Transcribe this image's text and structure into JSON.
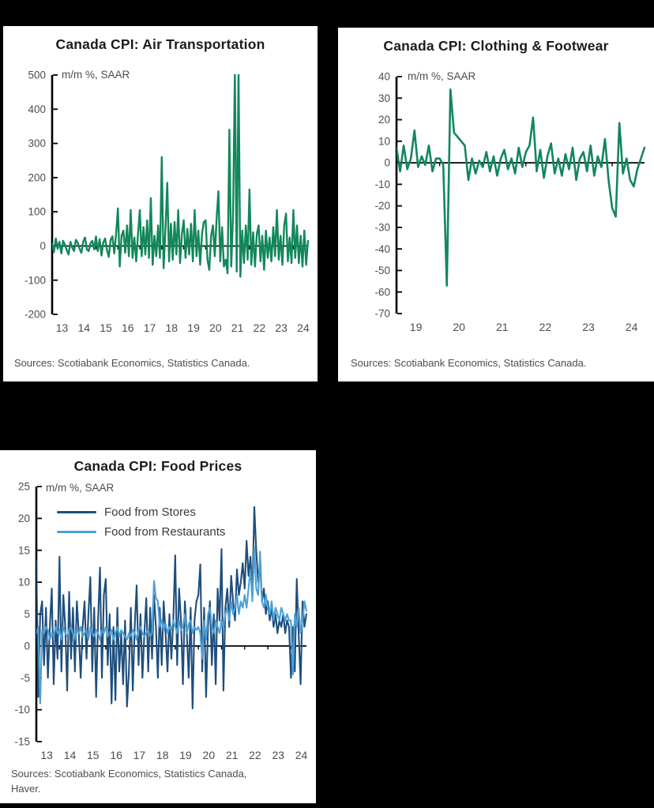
{
  "colors": {
    "background": "#000000",
    "panel": "#ffffff",
    "green": "#12875c",
    "dark_blue": "#1e4e7c",
    "light_blue": "#4da0d6",
    "axis": "#000000",
    "tick_text": "#4d4d4d"
  },
  "chart_data": [
    {
      "type": "line",
      "title": "Canada CPI: Air Transportation",
      "unit_label": "m/m %, SAAR",
      "source": "Sources: Scotiabank Economics, Statistics Canada.",
      "xlim": [
        2013,
        2024.67
      ],
      "ylim": [
        -200,
        500
      ],
      "ytick_step": 100,
      "yticks": [
        500,
        400,
        300,
        200,
        100,
        0,
        -100,
        -200
      ],
      "year_labels": [
        "13",
        "14",
        "15",
        "16",
        "17",
        "18",
        "19",
        "20",
        "21",
        "22",
        "23",
        "24"
      ],
      "points_per_year": 12,
      "grid": false,
      "legend_position": "none",
      "series": [
        {
          "name": "Air Transportation",
          "color": "#12875c",
          "width": 2.4,
          "values": [
            8,
            -18,
            22,
            -8,
            12,
            -22,
            15,
            4,
            -12,
            -25,
            12,
            -5,
            -15,
            18,
            10,
            -8,
            -20,
            12,
            25,
            -10,
            -15,
            8,
            15,
            -10,
            28,
            -15,
            20,
            -28,
            10,
            22,
            -12,
            -32,
            18,
            28,
            -22,
            35,
            110,
            -60,
            30,
            45,
            -20,
            60,
            -30,
            105,
            -35,
            25,
            -45,
            35,
            105,
            -30,
            55,
            -25,
            75,
            -35,
            140,
            -55,
            30,
            -30,
            60,
            -35,
            260,
            -65,
            45,
            185,
            -45,
            65,
            -40,
            70,
            -25,
            105,
            -50,
            35,
            75,
            -35,
            50,
            -25,
            65,
            -45,
            105,
            -30,
            45,
            -55,
            35,
            70,
            75,
            -40,
            -70,
            30,
            60,
            -30,
            80,
            160,
            -45,
            55,
            -60,
            -40,
            -80,
            340,
            -60,
            90,
            505,
            -75,
            510,
            -90,
            45,
            -50,
            60,
            -40,
            165,
            -55,
            40,
            -60,
            35,
            60,
            -45,
            30,
            -70,
            45,
            -35,
            25,
            -45,
            55,
            -30,
            105,
            -40,
            30,
            -55,
            60,
            95,
            -45,
            25,
            -50,
            105,
            -35,
            60,
            -50,
            30,
            -60,
            45,
            -55,
            15
          ]
        }
      ]
    },
    {
      "type": "line",
      "title": "Canada CPI: Clothing & Footwear",
      "unit_label": "m/m %, SAAR",
      "source": "Sources: Scotiabank Economics, Statistics Canada.",
      "xlim": [
        2019,
        2024.75
      ],
      "ylim": [
        -70,
        40
      ],
      "ytick_step": 10,
      "yticks": [
        40,
        30,
        20,
        10,
        0,
        -10,
        -20,
        -30,
        -40,
        -50,
        -60,
        -70
      ],
      "year_labels": [
        "19",
        "20",
        "21",
        "22",
        "23",
        "24"
      ],
      "points_per_year": 12,
      "grid": false,
      "legend_position": "none",
      "series": [
        {
          "name": "Clothing & Footwear",
          "color": "#12875c",
          "width": 2.6,
          "values": [
            7,
            -4,
            8,
            -3,
            2,
            15,
            -2,
            3,
            -1,
            8,
            -4,
            2,
            2,
            -1,
            -57,
            34,
            14,
            12,
            10,
            8,
            -8,
            2,
            -5,
            1,
            -2,
            5,
            -4,
            3,
            -6,
            2,
            6,
            -3,
            2,
            -5,
            7,
            -2,
            5,
            8,
            21,
            -4,
            6,
            -7,
            3,
            9,
            -5,
            2,
            -6,
            4,
            -3,
            7,
            -8,
            2,
            5,
            -4,
            8,
            -6,
            3,
            -2,
            11,
            -8,
            -21,
            -25,
            18.5,
            -5,
            2,
            -8,
            -11,
            -3,
            2,
            7
          ]
        }
      ]
    },
    {
      "type": "line",
      "title": "Canada CPI: Food Prices",
      "unit_label": "m/m %, SAAR",
      "source": "Sources: Scotiabank Economics, Statistics Canada, Haver.",
      "xlim": [
        2013,
        2024.67
      ],
      "ylim": [
        -15,
        25
      ],
      "ytick_step": 5,
      "yticks": [
        25,
        20,
        15,
        10,
        5,
        0,
        -5,
        -10,
        -15
      ],
      "year_labels": [
        "13",
        "14",
        "15",
        "16",
        "17",
        "18",
        "19",
        "20",
        "21",
        "22",
        "23",
        "24"
      ],
      "points_per_year": 12,
      "grid": false,
      "legend_position": "top-left",
      "series": [
        {
          "name": "Food from Stores",
          "color": "#1e4e7c",
          "width": 2.1,
          "values": [
            13.5,
            -8,
            5,
            7,
            -3,
            6,
            -5,
            3,
            9,
            -6,
            4,
            -2,
            14,
            -4,
            8,
            3,
            -7,
            8.5,
            -2,
            6,
            -4,
            7,
            2,
            -5,
            3,
            7,
            -2,
            5,
            10.8,
            -4,
            6,
            -8,
            4,
            12.3,
            -5,
            8,
            10.5,
            -3,
            5,
            -9,
            3,
            -8.5,
            6,
            -4,
            2,
            -6,
            4,
            -9.5,
            -4,
            6,
            -7,
            3,
            9.5,
            -3,
            5,
            -5,
            2,
            7.5,
            -4,
            6,
            -2,
            8,
            3,
            -5,
            6,
            -3,
            7,
            2,
            -4,
            5,
            -2,
            4,
            14.2,
            -3,
            9,
            4,
            -6,
            7,
            2,
            -5,
            6,
            -9.8,
            4,
            7,
            8,
            12.8,
            -4,
            6,
            -8,
            3,
            7,
            -3,
            5,
            -6,
            9,
            4,
            15.2,
            -7,
            6,
            9,
            3,
            11,
            7,
            4,
            12,
            8,
            10,
            13,
            9,
            16.5,
            11,
            14,
            8,
            21.8,
            15,
            10,
            13,
            7,
            9,
            5,
            7,
            4,
            6,
            3,
            5,
            2,
            4,
            3,
            5,
            2,
            4,
            3,
            -5,
            3,
            -4,
            10.5,
            2,
            -6,
            7,
            3,
            5
          ]
        },
        {
          "name": "Food from Restaurants",
          "color": "#4da0d6",
          "width": 2.1,
          "values": [
            2,
            3,
            -9,
            2.5,
            2,
            3,
            2.5,
            1,
            2,
            1.5,
            3,
            2,
            2.5,
            1,
            3,
            2,
            1.5,
            2.5,
            3,
            2,
            1,
            2.5,
            2,
            3,
            1.5,
            2,
            2.5,
            1,
            3,
            2,
            1.5,
            2.5,
            2,
            1,
            2.5,
            2,
            3,
            1.5,
            2,
            2.5,
            1,
            2,
            3,
            1.5,
            2.5,
            2,
            1.5,
            1,
            2,
            1.5,
            2.5,
            2,
            1,
            2.5,
            3,
            2,
            1.5,
            2,
            2.5,
            1.5,
            2,
            10.2,
            7.5,
            7,
            3,
            4,
            2.5,
            3.5,
            2,
            3,
            2.5,
            4,
            3,
            2,
            4,
            2.5,
            3,
            5,
            2,
            3.5,
            4,
            2,
            3,
            2.5,
            3,
            2,
            -2,
            4,
            1,
            5,
            6,
            3,
            2,
            4,
            3,
            2,
            4,
            3,
            5,
            6,
            4,
            7,
            5,
            6,
            8,
            5,
            7,
            6,
            8,
            6,
            9,
            12,
            7,
            15.5,
            9,
            8,
            14.8,
            7,
            6,
            8,
            6,
            5,
            7,
            4,
            6,
            5,
            4,
            6,
            5,
            4,
            5,
            4,
            4,
            -4.5,
            5,
            3,
            6,
            2,
            4,
            7,
            5.5
          ]
        }
      ]
    }
  ]
}
